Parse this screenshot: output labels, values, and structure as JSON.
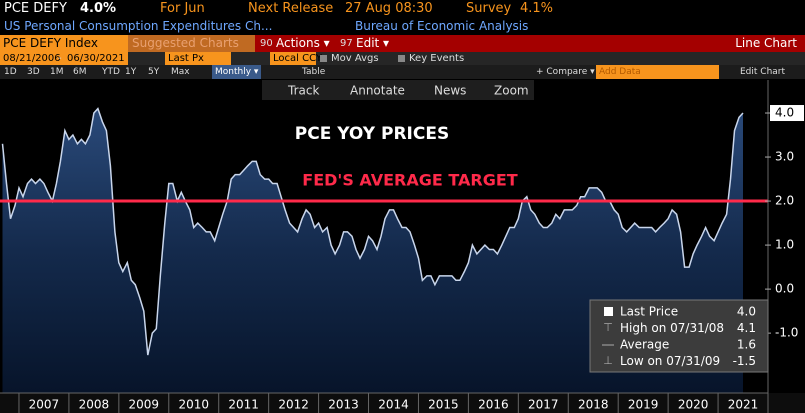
{
  "header": {
    "ticker": "PCE DEFY",
    "value": "4.0%",
    "period": "For Jun",
    "release_label": "Next Release",
    "release": "27 Aug 08:30",
    "survey_label": "Survey",
    "survey": "4.1%",
    "description": "US Personal Consumption Expenditures Ch...",
    "source": "Bureau of Economic Analysis"
  },
  "toolbar": {
    "security": "PCE DEFY Index",
    "suggested": "Suggested Charts",
    "actions_code": "90",
    "actions": "Actions ▾",
    "edit_code": "97",
    "edit": "Edit ▾",
    "chart_type": "Line Chart",
    "start_date": "08/21/2006",
    "date_sep": "-",
    "end_date": "06/30/2021",
    "price": "Last Px",
    "currency": "Local CCY",
    "mov_avgs": "Mov Avgs",
    "key_events": "Key Events",
    "ranges": [
      "1D",
      "3D",
      "1M",
      "6M",
      "YTD",
      "1Y",
      "5Y",
      "Max"
    ],
    "frequency": "Monthly ▾",
    "table": "Table",
    "compare": "+ Compare ▾",
    "add_data": "Add Data",
    "edit_chart": "Edit Chart",
    "tools": [
      "Track",
      "Annotate",
      "News",
      "Zoom"
    ]
  },
  "chart_data": {
    "type": "line",
    "title": "PCE YOY PRICES",
    "target_label": "FED'S AVERAGE TARGET",
    "target": 2,
    "target_color": "#ff2a4a",
    "series": [
      {
        "name": "Last Price",
        "color": "#c9d6ec",
        "x": [
          2006.67,
          2006.75,
          2006.83,
          2006.92,
          2007.0,
          2007.08,
          2007.17,
          2007.25,
          2007.33,
          2007.42,
          2007.5,
          2007.58,
          2007.67,
          2007.75,
          2007.83,
          2007.92,
          2008.0,
          2008.08,
          2008.17,
          2008.25,
          2008.33,
          2008.42,
          2008.5,
          2008.58,
          2008.67,
          2008.75,
          2008.83,
          2008.92,
          2009.0,
          2009.08,
          2009.17,
          2009.25,
          2009.33,
          2009.42,
          2009.5,
          2009.58,
          2009.67,
          2009.75,
          2009.83,
          2009.92,
          2010.0,
          2010.08,
          2010.17,
          2010.25,
          2010.33,
          2010.42,
          2010.5,
          2010.58,
          2010.67,
          2010.75,
          2010.83,
          2010.92,
          2011.0,
          2011.08,
          2011.17,
          2011.25,
          2011.33,
          2011.42,
          2011.5,
          2011.58,
          2011.67,
          2011.75,
          2011.83,
          2011.92,
          2012.0,
          2012.08,
          2012.17,
          2012.25,
          2012.33,
          2012.42,
          2012.5,
          2012.58,
          2012.67,
          2012.75,
          2012.83,
          2012.92,
          2013.0,
          2013.08,
          2013.17,
          2013.25,
          2013.33,
          2013.42,
          2013.5,
          2013.58,
          2013.67,
          2013.75,
          2013.83,
          2013.92,
          2014.0,
          2014.08,
          2014.17,
          2014.25,
          2014.33,
          2014.42,
          2014.5,
          2014.58,
          2014.67,
          2014.75,
          2014.83,
          2014.92,
          2015.0,
          2015.08,
          2015.17,
          2015.25,
          2015.33,
          2015.42,
          2015.5,
          2015.58,
          2015.67,
          2015.75,
          2015.83,
          2015.92,
          2016.0,
          2016.08,
          2016.17,
          2016.25,
          2016.33,
          2016.42,
          2016.5,
          2016.58,
          2016.67,
          2016.75,
          2016.83,
          2016.92,
          2017.0,
          2017.08,
          2017.17,
          2017.25,
          2017.33,
          2017.42,
          2017.5,
          2017.58,
          2017.67,
          2017.75,
          2017.83,
          2017.92,
          2018.0,
          2018.08,
          2018.17,
          2018.25,
          2018.33,
          2018.42,
          2018.5,
          2018.58,
          2018.67,
          2018.75,
          2018.83,
          2018.92,
          2019.0,
          2019.08,
          2019.17,
          2019.25,
          2019.33,
          2019.42,
          2019.5,
          2019.58,
          2019.67,
          2019.75,
          2019.83,
          2019.92,
          2020.0,
          2020.08,
          2020.17,
          2020.25,
          2020.33,
          2020.42,
          2020.5,
          2020.58,
          2020.67,
          2020.75,
          2020.83,
          2020.92,
          2021.0,
          2021.08,
          2021.17,
          2021.25,
          2021.33,
          2021.42,
          2021.5
        ],
        "values": [
          3.3,
          2.4,
          1.6,
          1.9,
          2.3,
          2.1,
          2.4,
          2.5,
          2.4,
          2.5,
          2.4,
          2.2,
          2.0,
          2.4,
          2.9,
          3.6,
          3.4,
          3.5,
          3.3,
          3.4,
          3.3,
          3.5,
          4.0,
          4.1,
          3.8,
          3.6,
          2.8,
          1.3,
          0.6,
          0.4,
          0.6,
          0.2,
          0.1,
          -0.2,
          -0.5,
          -1.5,
          -1.0,
          -0.9,
          0.3,
          1.5,
          2.4,
          2.4,
          2.0,
          2.2,
          2.0,
          1.8,
          1.4,
          1.5,
          1.4,
          1.3,
          1.3,
          1.1,
          1.4,
          1.7,
          2.0,
          2.5,
          2.6,
          2.6,
          2.7,
          2.8,
          2.9,
          2.9,
          2.6,
          2.5,
          2.5,
          2.4,
          2.4,
          2.1,
          1.8,
          1.5,
          1.4,
          1.3,
          1.6,
          1.8,
          1.7,
          1.4,
          1.5,
          1.3,
          1.4,
          1.0,
          0.8,
          1.0,
          1.3,
          1.3,
          1.2,
          0.9,
          0.7,
          0.9,
          1.2,
          1.1,
          0.9,
          1.2,
          1.6,
          1.8,
          1.8,
          1.6,
          1.4,
          1.4,
          1.3,
          1.0,
          0.7,
          0.2,
          0.3,
          0.3,
          0.1,
          0.3,
          0.3,
          0.3,
          0.3,
          0.2,
          0.2,
          0.4,
          0.6,
          1.0,
          0.8,
          0.9,
          1.0,
          0.9,
          0.9,
          0.8,
          1.0,
          1.2,
          1.4,
          1.4,
          1.6,
          2.0,
          2.1,
          1.8,
          1.7,
          1.5,
          1.4,
          1.4,
          1.5,
          1.7,
          1.6,
          1.8,
          1.8,
          1.8,
          1.9,
          2.1,
          2.1,
          2.3,
          2.3,
          2.3,
          2.2,
          2.0,
          2.0,
          1.8,
          1.7,
          1.4,
          1.3,
          1.4,
          1.5,
          1.4,
          1.4,
          1.4,
          1.4,
          1.3,
          1.4,
          1.5,
          1.6,
          1.8,
          1.7,
          1.3,
          0.5,
          0.5,
          0.8,
          1.0,
          1.2,
          1.4,
          1.2,
          1.1,
          1.3,
          1.5,
          1.7,
          2.5,
          3.6,
          3.9,
          4.0
        ]
      }
    ],
    "xlim": [
      2006.62,
      2022.0
    ],
    "xticks": [
      2007,
      2008,
      2009,
      2010,
      2011,
      2012,
      2013,
      2014,
      2015,
      2016,
      2017,
      2018,
      2019,
      2020,
      2021
    ],
    "ylim": [
      -2.36,
      4.75
    ],
    "yticks": [
      {
        "value": 4,
        "label": "4.0"
      },
      {
        "value": 3,
        "label": "3.0"
      },
      {
        "value": 2,
        "label": "2.0"
      },
      {
        "value": 1,
        "label": "1.0"
      },
      {
        "value": 0,
        "label": "0.0"
      },
      {
        "value": -1,
        "label": "-1.0"
      }
    ],
    "grid": false,
    "stats": [
      {
        "label": "Last Price",
        "value": "4.0"
      },
      {
        "label": "High on 07/31/08",
        "value": "4.1"
      },
      {
        "label": "Average",
        "value": "1.6"
      },
      {
        "label": "Low on 07/31/09",
        "value": "-1.5"
      }
    ]
  }
}
